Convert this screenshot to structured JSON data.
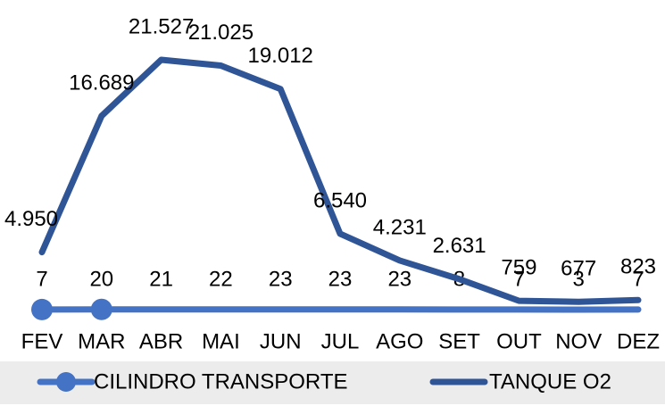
{
  "chart_data": {
    "type": "line",
    "categories": [
      "FEV",
      "MAR",
      "ABR",
      "MAI",
      "JUN",
      "JUL",
      "AGO",
      "SET",
      "OUT",
      "NOV",
      "DEZ"
    ],
    "series": [
      {
        "name": "CILINDRO TRANSPORTE",
        "color": "#4472c4",
        "values": [
          7,
          20,
          21,
          22,
          23,
          23,
          23,
          8,
          7,
          3,
          7
        ]
      },
      {
        "name": "TANQUE O2",
        "color": "#2f5597",
        "values": [
          4950,
          16689,
          21527,
          21025,
          19012,
          6540,
          4231,
          2631,
          759,
          677,
          823
        ],
        "value_labels": [
          "4.950",
          "16.689",
          "21.527",
          "21.025",
          "19.012",
          "6.540",
          "4.231",
          "2.631",
          "759",
          "677",
          "823"
        ]
      }
    ],
    "legend": "bottom"
  }
}
